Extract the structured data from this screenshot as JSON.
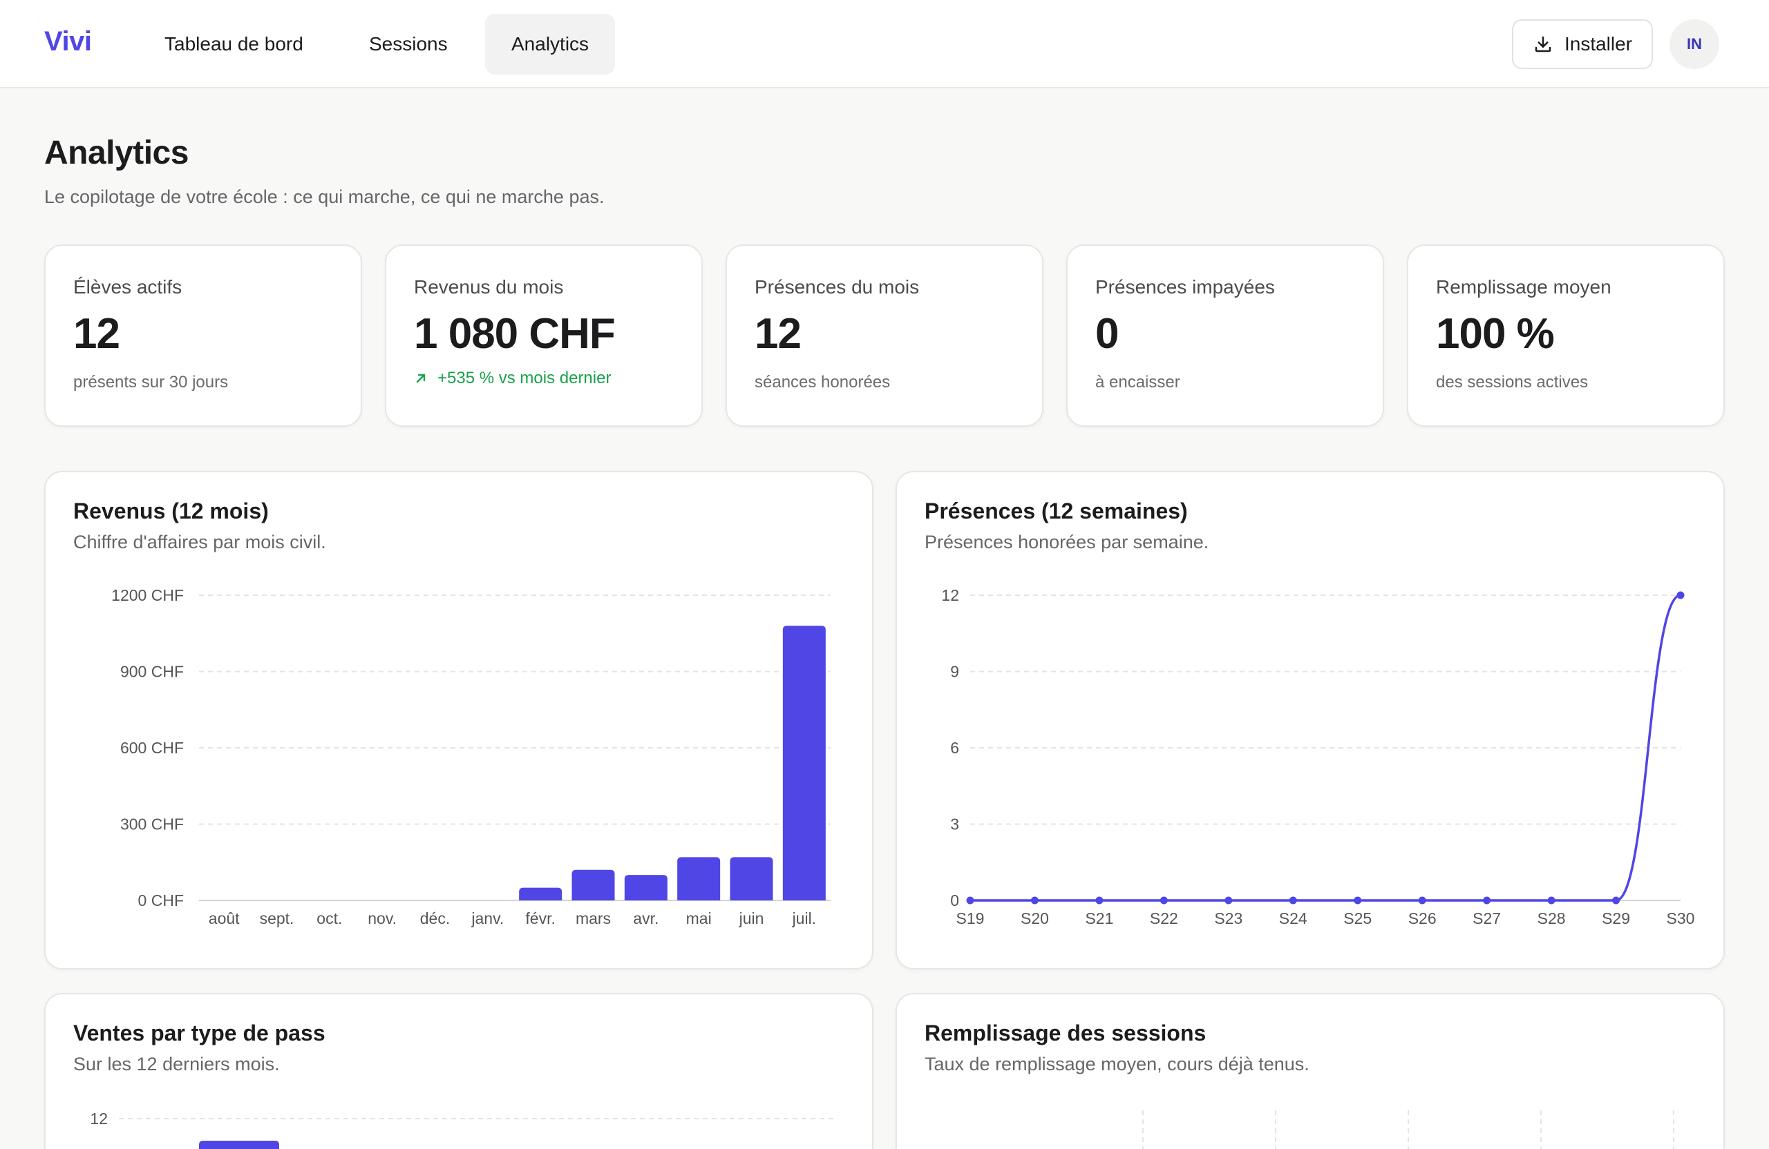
{
  "header": {
    "logo": "Vivi",
    "tabs": [
      {
        "label": "Tableau de bord"
      },
      {
        "label": "Sessions"
      },
      {
        "label": "Analytics"
      }
    ],
    "install_label": "Installer",
    "avatar_initials": "IN"
  },
  "page": {
    "title": "Analytics",
    "subtitle": "Le copilotage de votre école : ce qui marche, ce qui ne marche pas."
  },
  "kpis": [
    {
      "label": "Élèves actifs",
      "value": "12",
      "note": "présents sur 30 jours"
    },
    {
      "label": "Revenus du mois",
      "value": "1 080 CHF",
      "note": "+535 % vs mois dernier"
    },
    {
      "label": "Présences du mois",
      "value": "12",
      "note": "séances honorées"
    },
    {
      "label": "Présences impayées",
      "value": "0",
      "note": "à encaisser"
    },
    {
      "label": "Remplissage moyen",
      "value": "100 %",
      "note": "des sessions actives"
    }
  ],
  "colors": {
    "accent": "#4f46e5",
    "positive": "#16a34a"
  },
  "cards": {
    "revenue": {
      "title": "Revenus (12 mois)",
      "subtitle": "Chiffre d'affaires par mois civil."
    },
    "attendance": {
      "title": "Présences (12 semaines)",
      "subtitle": "Présences honorées par semaine."
    },
    "passes": {
      "title": "Ventes par type de pass",
      "subtitle": "Sur les 12 derniers mois."
    },
    "fill": {
      "title": "Remplissage des sessions",
      "subtitle": "Taux de remplissage moyen, cours déjà tenus."
    }
  },
  "chart_data": [
    {
      "type": "bar",
      "title": "Revenus (12 mois)",
      "categories": [
        "août",
        "sept.",
        "oct.",
        "nov.",
        "déc.",
        "janv.",
        "févr.",
        "mars",
        "avr.",
        "mai",
        "juin",
        "juil."
      ],
      "values": [
        0,
        0,
        0,
        0,
        0,
        0,
        50,
        120,
        100,
        170,
        170,
        1080
      ],
      "ylim": [
        0,
        1200
      ],
      "yticks": [
        0,
        300,
        600,
        900,
        1200
      ],
      "ytick_labels": [
        "0 CHF",
        "300 CHF",
        "600 CHF",
        "900 CHF",
        "1200 CHF"
      ],
      "grid": true
    },
    {
      "type": "line",
      "title": "Présences (12 semaines)",
      "categories": [
        "S19",
        "S20",
        "S21",
        "S22",
        "S23",
        "S24",
        "S25",
        "S26",
        "S27",
        "S28",
        "S29",
        "S30"
      ],
      "values": [
        0,
        0,
        0,
        0,
        0,
        0,
        0,
        0,
        0,
        0,
        0,
        12
      ],
      "ylim": [
        0,
        12
      ],
      "yticks": [
        0,
        3,
        6,
        9,
        12
      ],
      "ytick_labels": [
        "0",
        "3",
        "6",
        "9",
        "12"
      ],
      "grid": true
    },
    {
      "type": "bar",
      "title": "Ventes par type de pass",
      "yticks": [
        12
      ],
      "ytick_labels": [
        "12"
      ],
      "grid": true
    }
  ]
}
